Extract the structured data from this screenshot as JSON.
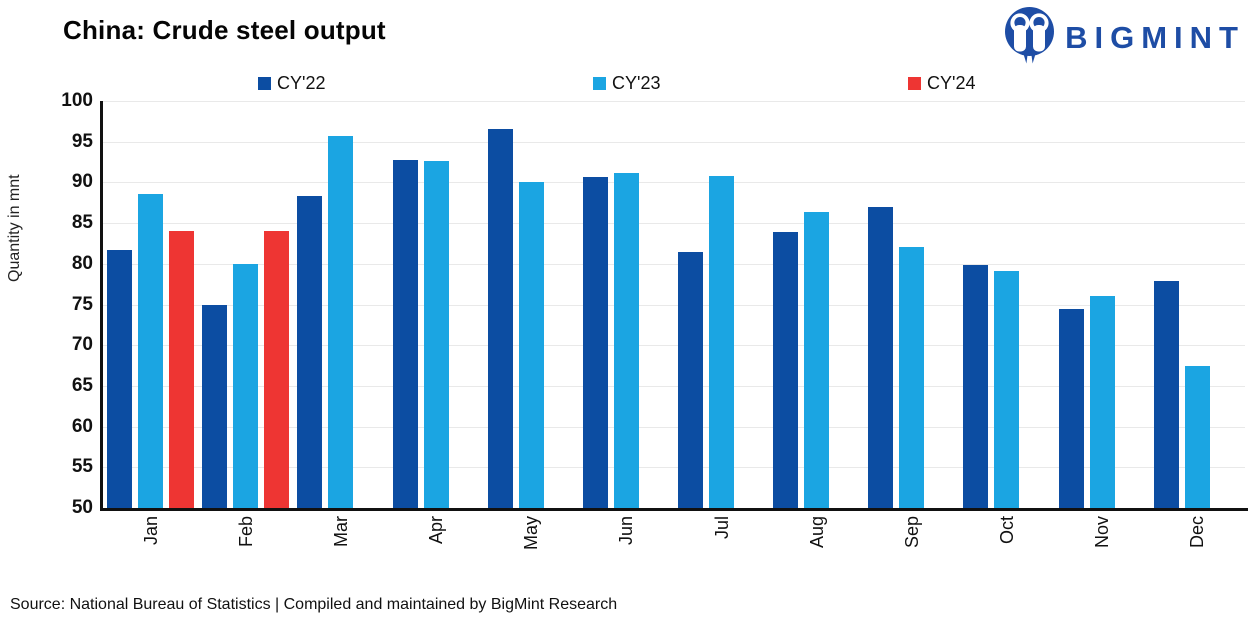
{
  "header": {
    "title": "China: Crude steel output"
  },
  "logo": {
    "brand": "BIGMINT",
    "color": "#1e4da5"
  },
  "yaxis": {
    "label": "Quantity in mnt"
  },
  "source": {
    "text": "Source: National Bureau of Statistics | Compiled and maintained by BigMint Research"
  },
  "chart_data": {
    "type": "bar",
    "title": "China: Crude steel output",
    "ylabel": "Quantity in mnt",
    "xlabel": "",
    "ylim": [
      50,
      100
    ],
    "ytick_step": 5,
    "grid": true,
    "legend_position": "top",
    "categories": [
      "Jan",
      "Feb",
      "Mar",
      "Apr",
      "May",
      "Jun",
      "Jul",
      "Aug",
      "Sep",
      "Oct",
      "Nov",
      "Dec"
    ],
    "series": [
      {
        "name": "CY'22",
        "color": "#0c4da2",
        "values": [
          81.7,
          75.0,
          88.3,
          92.8,
          96.6,
          90.7,
          81.4,
          83.9,
          87.0,
          79.8,
          74.5,
          77.9
        ]
      },
      {
        "name": "CY'23",
        "color": "#1ba5e2",
        "values": [
          88.6,
          80.0,
          95.7,
          92.6,
          90.1,
          91.1,
          90.8,
          86.4,
          82.1,
          79.1,
          76.1,
          67.4
        ]
      },
      {
        "name": "CY'24",
        "color": "#ee3533",
        "values": [
          84.0,
          84.0,
          null,
          null,
          null,
          null,
          null,
          null,
          null,
          null,
          null,
          null
        ]
      }
    ]
  }
}
